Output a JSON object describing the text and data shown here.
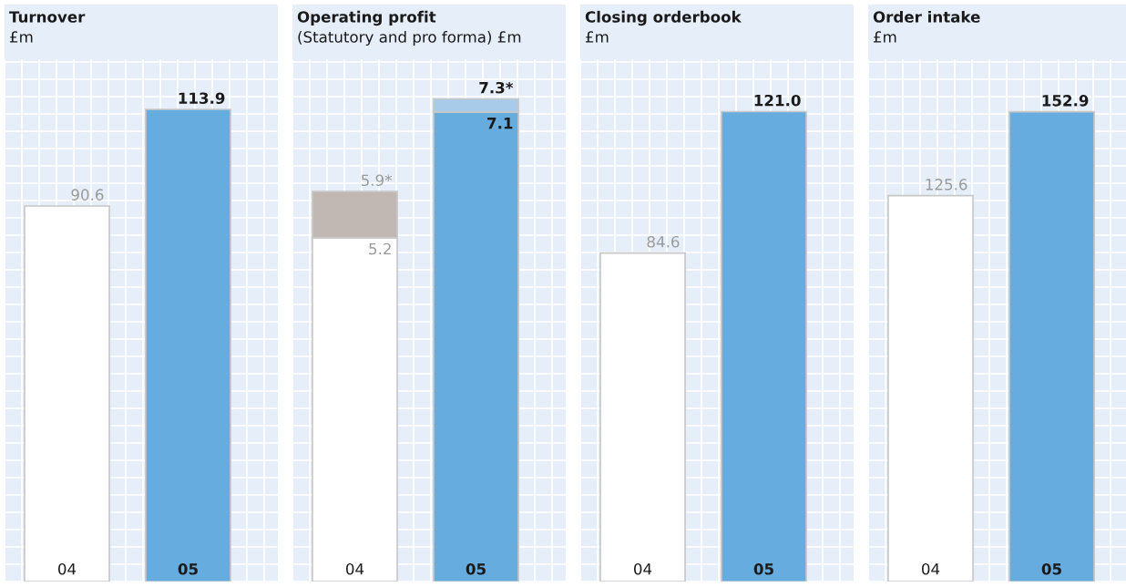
{
  "chart_data": [
    {
      "type": "bar",
      "title": "Turnover",
      "subtitle": "£m",
      "categories": [
        "04",
        "05"
      ],
      "values": [
        90.6,
        113.9
      ],
      "colors": [
        "#ffffff",
        "#66acdf"
      ],
      "data_labels": true,
      "ylim": [
        0,
        126
      ],
      "grid": true,
      "tick_labels": "x"
    },
    {
      "type": "bar",
      "title": "Operating profit",
      "subtitle": "(Statutory and pro forma) £m",
      "categories": [
        "04",
        "05"
      ],
      "stacked": true,
      "series": [
        {
          "values": [
            5.2,
            7.1
          ],
          "colors": [
            "#ffffff",
            "#66acdf"
          ],
          "value_labels": [
            "5.2",
            "7.1"
          ]
        },
        {
          "values": [
            0.7,
            0.2
          ],
          "colors": [
            "#c2b8b3",
            "#a9cbea"
          ]
        }
      ],
      "totals": [
        "5.9*",
        "7.3*"
      ],
      "ylim": [
        0,
        7.9
      ],
      "grid": true,
      "tick_labels": "x"
    },
    {
      "type": "bar",
      "title": "Closing orderbook",
      "subtitle": "£m",
      "categories": [
        "04",
        "05"
      ],
      "values": [
        84.6,
        121.0
      ],
      "colors": [
        "#ffffff",
        "#66acdf"
      ],
      "value_labels": [
        "84.6",
        "121.0"
      ],
      "ylim": [
        0,
        134.5
      ],
      "grid": true,
      "tick_labels": "x"
    },
    {
      "type": "bar",
      "title": "Order intake",
      "subtitle": "£m",
      "categories": [
        "04",
        "05"
      ],
      "values": [
        125.6,
        152.9
      ],
      "colors": [
        "#ffffff",
        "#66acdf"
      ],
      "data_labels": true,
      "ylim": [
        0,
        170
      ],
      "grid": true,
      "tick_labels": "x"
    }
  ]
}
